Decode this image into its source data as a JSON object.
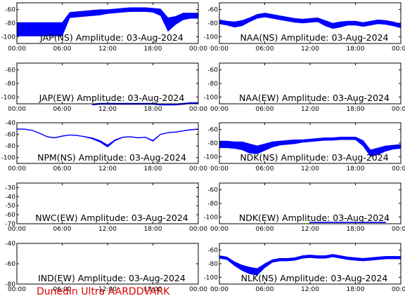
{
  "footer": "Dunedin Ultra AARDDVARK",
  "chart_data": [
    {
      "type": "line",
      "title": "JAP(NS) Amplitude: 03-Aug-2024",
      "xticks": [
        "00:00",
        "06:00",
        "12:00",
        "18:00",
        "00:00"
      ],
      "yticks": [
        "-60",
        "-80",
        "-100"
      ],
      "ylim": [
        -110,
        -50
      ],
      "grid": false,
      "series_color": "#0000ff",
      "x": [
        0,
        1,
        2,
        3,
        4,
        5,
        6,
        7,
        8,
        9,
        10,
        11,
        12,
        13,
        14,
        15,
        16,
        17,
        18,
        19,
        20,
        21,
        22,
        23,
        24
      ],
      "y": [
        -89,
        -89,
        -89,
        -89,
        -89,
        -89,
        -89,
        -68,
        -67,
        -66,
        -65,
        -64,
        -63,
        -62,
        -61,
        -60,
        -60,
        -60,
        -61,
        -64,
        -82,
        -76,
        -70,
        -69,
        -69
      ],
      "spread": [
        10,
        10,
        10,
        10,
        10,
        10,
        10,
        4,
        4,
        4,
        4,
        4,
        3,
        3,
        3,
        3,
        3,
        3,
        3,
        5,
        10,
        6,
        5,
        4,
        4
      ]
    },
    {
      "type": "line",
      "title": "NAA(NS) Amplitude: 03-Aug-2024",
      "xticks": [
        "00:00",
        "06:00",
        "12:00",
        "18:00",
        "00:00"
      ],
      "yticks": [
        "-60",
        "-80",
        "-100"
      ],
      "ylim": [
        -110,
        -50
      ],
      "grid": false,
      "series_color": "#0000ff",
      "x": [
        0,
        1,
        2,
        3,
        4,
        5,
        6,
        7,
        8,
        9,
        10,
        11,
        12,
        13,
        14,
        15,
        16,
        17,
        18,
        19,
        20,
        21,
        22,
        23,
        24
      ],
      "y": [
        -78,
        -80,
        -82,
        -80,
        -75,
        -70,
        -68,
        -70,
        -72,
        -74,
        -76,
        -77,
        -76,
        -75,
        -80,
        -84,
        -82,
        -80,
        -80,
        -82,
        -80,
        -78,
        -79,
        -81,
        -84
      ],
      "spread": [
        3,
        3,
        4,
        4,
        3,
        3,
        3,
        3,
        3,
        3,
        3,
        3,
        3,
        3,
        4,
        4,
        4,
        3,
        3,
        3,
        3,
        3,
        3,
        3,
        3
      ]
    },
    {
      "type": "line",
      "title": "JAP(EW) Amplitude: 03-Aug-2024",
      "xticks": [
        "00:00",
        "06:00",
        "12:00",
        "18:00",
        "00:00"
      ],
      "yticks": [
        "-60",
        "-80",
        "-100"
      ],
      "ylim": [
        -110,
        -50
      ],
      "grid": false,
      "series_color": "#0000ff",
      "x": [
        10,
        11,
        12,
        13,
        14,
        15,
        16,
        17,
        18,
        19,
        20,
        21,
        22,
        23,
        24
      ],
      "y": [
        -111,
        -110,
        -110,
        -110,
        -110,
        -110,
        -110,
        -110,
        -110,
        -111,
        -111,
        -111,
        -110,
        -109,
        -109
      ],
      "spread": [
        1,
        1,
        1,
        1,
        1,
        1,
        1,
        1,
        1,
        1,
        1,
        1,
        1,
        1,
        1
      ]
    },
    {
      "type": "line",
      "title": "NAA(EW) Amplitude: 03-Aug-2024",
      "xticks": [
        "00:00",
        "06:00",
        "12:00",
        "18:00",
        "00:00"
      ],
      "yticks": [
        "-60",
        "-80",
        "-100"
      ],
      "ylim": [
        -110,
        -50
      ],
      "grid": false,
      "series_color": "#0000ff",
      "x": [],
      "y": [],
      "spread": []
    },
    {
      "type": "line",
      "title": "NPM(NS) Amplitude: 03-Aug-2024",
      "xticks": [
        "00:00",
        "06:00",
        "12:00",
        "18:00",
        "00:00"
      ],
      "yticks": [
        "-40",
        "-60",
        "-80",
        "-100"
      ],
      "ylim": [
        -110,
        -40
      ],
      "grid": false,
      "series_color": "#0000ff",
      "x": [
        0,
        1,
        2,
        3,
        4,
        5,
        6,
        7,
        8,
        9,
        10,
        11,
        12,
        13,
        14,
        15,
        16,
        17,
        18,
        19,
        20,
        21,
        22,
        23,
        24
      ],
      "y": [
        -51,
        -51,
        -53,
        -58,
        -64,
        -66,
        -63,
        -61,
        -62,
        -64,
        -67,
        -72,
        -80,
        -70,
        -65,
        -64,
        -66,
        -65,
        -71,
        -60,
        -57,
        -56,
        -54,
        -52,
        -51
      ],
      "spread": [
        0.5,
        0.5,
        0.5,
        0.5,
        0.5,
        0.5,
        0.5,
        0.5,
        0.5,
        0.5,
        1,
        1.5,
        2,
        1,
        0.5,
        0.5,
        0.5,
        0.5,
        1,
        0.5,
        0.5,
        0.5,
        0.5,
        0.5,
        0.5
      ]
    },
    {
      "type": "line",
      "title": "NDK(NS) Amplitude: 03-Aug-2024",
      "xticks": [
        "00:00",
        "06:00",
        "12:00",
        "18:00",
        "00:00"
      ],
      "yticks": [
        "-60",
        "-80",
        "-100"
      ],
      "ylim": [
        -110,
        -50
      ],
      "grid": false,
      "series_color": "#0000ff",
      "x": [
        0,
        1,
        2,
        3,
        4,
        5,
        6,
        7,
        8,
        9,
        10,
        11,
        12,
        13,
        14,
        15,
        16,
        17,
        18,
        19,
        20,
        21,
        22,
        23,
        24
      ],
      "y": [
        -82,
        -82,
        -83,
        -84,
        -88,
        -90,
        -86,
        -82,
        -80,
        -79,
        -78,
        -77,
        -76,
        -75,
        -74,
        -74,
        -73,
        -73,
        -73,
        -80,
        -95,
        -92,
        -88,
        -86,
        -85
      ],
      "spread": [
        5,
        5,
        5,
        6,
        7,
        6,
        5,
        4,
        3,
        3,
        3,
        2,
        2,
        2,
        2,
        2,
        2,
        2,
        2,
        4,
        5,
        5,
        4,
        3,
        3
      ]
    },
    {
      "type": "line",
      "title": "NWC(EW) Amplitude: 03-Aug-2024",
      "xticks": [
        "00:00",
        "06:00",
        "12:00",
        "18:00",
        "00:00"
      ],
      "yticks": [
        "-30",
        "-40",
        "-50",
        "-60",
        "-70"
      ],
      "ylim": [
        -70,
        -25
      ],
      "grid": false,
      "series_color": "#0000ff",
      "x": [],
      "y": [],
      "spread": []
    },
    {
      "type": "line",
      "title": "NDK(EW) Amplitude: 03-Aug-2024",
      "xticks": [
        "00:00",
        "06:00",
        "12:00",
        "18:00",
        "00:00"
      ],
      "yticks": [
        "-60",
        "-80",
        "-100"
      ],
      "ylim": [
        -110,
        -50
      ],
      "grid": false,
      "series_color": "#0000ff",
      "x": [
        12,
        13,
        14,
        15,
        16,
        17,
        18,
        19,
        20,
        21,
        22
      ],
      "y": [
        -108,
        -108,
        -108,
        -108,
        -108,
        -108,
        -108,
        -108,
        -108,
        -108,
        -108
      ],
      "spread": [
        0.5,
        0.5,
        0.5,
        0.5,
        0.5,
        0.5,
        0.5,
        0.5,
        0.5,
        0.5,
        0.5
      ]
    },
    {
      "type": "line",
      "title": "IND(EW) Amplitude: 03-Aug-2024",
      "xticks": [
        "00:00",
        "06:00",
        "12:00",
        "18:00",
        "00:00"
      ],
      "yticks": [
        "-40",
        "-60",
        "-80"
      ],
      "ylim": [
        -80,
        -40
      ],
      "grid": false,
      "series_color": "#0000ff",
      "x": [],
      "y": [],
      "spread": []
    },
    {
      "type": "line",
      "title": "NLK(NS) Amplitude: 03-Aug-2024",
      "xticks": [
        "00:00",
        "06:00",
        "12:00",
        "18:00",
        "00:00"
      ],
      "yticks": [
        "-60",
        "-80",
        "-100"
      ],
      "ylim": [
        -110,
        -50
      ],
      "grid": false,
      "series_color": "#0000ff",
      "x": [
        0,
        1,
        2,
        3,
        4,
        5,
        6,
        7,
        8,
        9,
        10,
        11,
        12,
        13,
        14,
        15,
        16,
        17,
        18,
        19,
        20,
        21,
        22,
        23,
        24
      ],
      "y": [
        -70,
        -72,
        -80,
        -86,
        -90,
        -92,
        -83,
        -76,
        -74,
        -74,
        -73,
        -70,
        -69,
        -70,
        -70,
        -68,
        -70,
        -72,
        -73,
        -74,
        -73,
        -72,
        -71,
        -71,
        -71
      ],
      "spread": [
        2,
        2,
        3,
        4,
        5,
        5,
        3,
        2,
        2,
        2,
        2,
        2,
        2,
        2,
        2,
        2,
        2,
        2,
        2,
        2,
        2,
        2,
        2,
        2,
        2
      ]
    }
  ]
}
